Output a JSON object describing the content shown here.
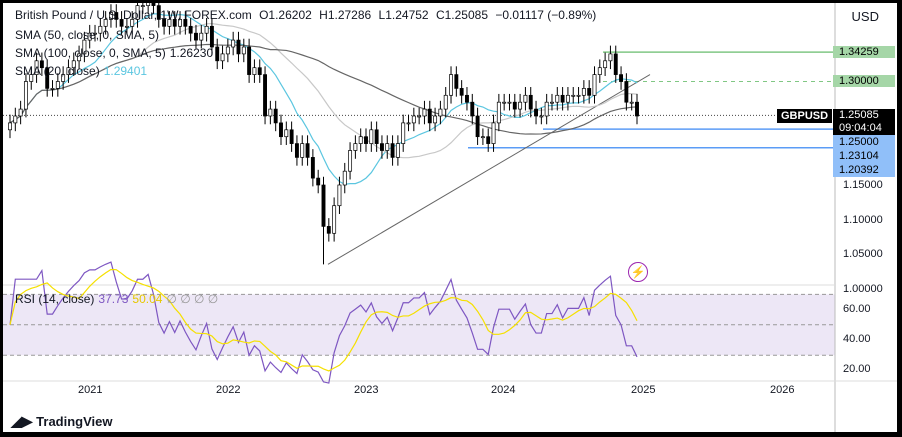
{
  "header": {
    "symbol_title": "British Pound / U.S. Dollar, 1W, FOREX.com",
    "open": "O1.26202",
    "high": "H1.27286",
    "low": "L1.24752",
    "close": "C1.25085",
    "change": "−0.01117 (−0.89%)",
    "currency": "USD"
  },
  "indicators": [
    {
      "label": "SMA (50, close, 0, SMA, 5)",
      "value": "",
      "color": "#b2b5be"
    },
    {
      "label": "SMA (100, close, 0, SMA, 5)",
      "value": "1.26230",
      "color": "#555555"
    },
    {
      "label": "SMA (20, close)",
      "value": "1.29401",
      "color": "#5bc6e0"
    }
  ],
  "rsi": {
    "label": "RSI (14, close)",
    "value": "37.73",
    "ma_value": "50.04",
    "extra": "∅ ∅ ∅ ∅",
    "line_color": "#7e57c2",
    "ma_color": "#f5e000",
    "levels": [
      70,
      50,
      30
    ]
  },
  "price_labels": {
    "symbol": "GBPUSD",
    "last": "1.25085",
    "countdown": "09:04:04",
    "levels_green": [
      "1.34259",
      "1.30000"
    ],
    "levels_blue": [
      "1.25000",
      "1.23104",
      "1.20392"
    ]
  },
  "colors": {
    "green": "#a5d6a7",
    "blue": "#90bff9",
    "green_line": "#81c784",
    "blue_line": "#5b9cf6"
  },
  "logo": "TradingView",
  "chart_data": {
    "type": "candlestick",
    "interval": "biweekly approximation of weekly candles",
    "start": "2020-06",
    "end": "2024-12",
    "closes": [
      1.24,
      1.25,
      1.26,
      1.3,
      1.31,
      1.33,
      1.32,
      1.29,
      1.29,
      1.3,
      1.31,
      1.32,
      1.33,
      1.34,
      1.36,
      1.37,
      1.37,
      1.38,
      1.39,
      1.4,
      1.39,
      1.38,
      1.38,
      1.39,
      1.41,
      1.41,
      1.42,
      1.41,
      1.39,
      1.38,
      1.39,
      1.38,
      1.39,
      1.38,
      1.37,
      1.36,
      1.37,
      1.38,
      1.35,
      1.33,
      1.34,
      1.35,
      1.36,
      1.34,
      1.35,
      1.31,
      1.32,
      1.31,
      1.25,
      1.26,
      1.24,
      1.22,
      1.23,
      1.21,
      1.19,
      1.21,
      1.19,
      1.16,
      1.15,
      1.09,
      1.08,
      1.12,
      1.15,
      1.17,
      1.2,
      1.21,
      1.22,
      1.21,
      1.23,
      1.21,
      1.2,
      1.21,
      1.19,
      1.21,
      1.24,
      1.24,
      1.25,
      1.25,
      1.26,
      1.24,
      1.25,
      1.26,
      1.28,
      1.31,
      1.29,
      1.28,
      1.27,
      1.25,
      1.22,
      1.22,
      1.21,
      1.24,
      1.27,
      1.27,
      1.27,
      1.26,
      1.27,
      1.28,
      1.26,
      1.25,
      1.25,
      1.27,
      1.27,
      1.28,
      1.27,
      1.28,
      1.28,
      1.28,
      1.29,
      1.28,
      1.31,
      1.32,
      1.33,
      1.34,
      1.31,
      1.3,
      1.27,
      1.27,
      1.25
    ],
    "price_ticks": [
      "1.35000",
      "1.30000",
      "1.25000",
      "1.20000",
      "1.15000",
      "1.10000",
      "1.05000",
      "1.00000"
    ],
    "rsi_ticks": [
      "60.00",
      "40.00",
      "20.00"
    ],
    "x_ticks": [
      "2021",
      "2022",
      "2023",
      "2024",
      "2025",
      "2026"
    ],
    "trendline": {
      "from": [
        "2022-09",
        1.035
      ],
      "to": [
        "2024-12",
        1.31
      ]
    }
  }
}
